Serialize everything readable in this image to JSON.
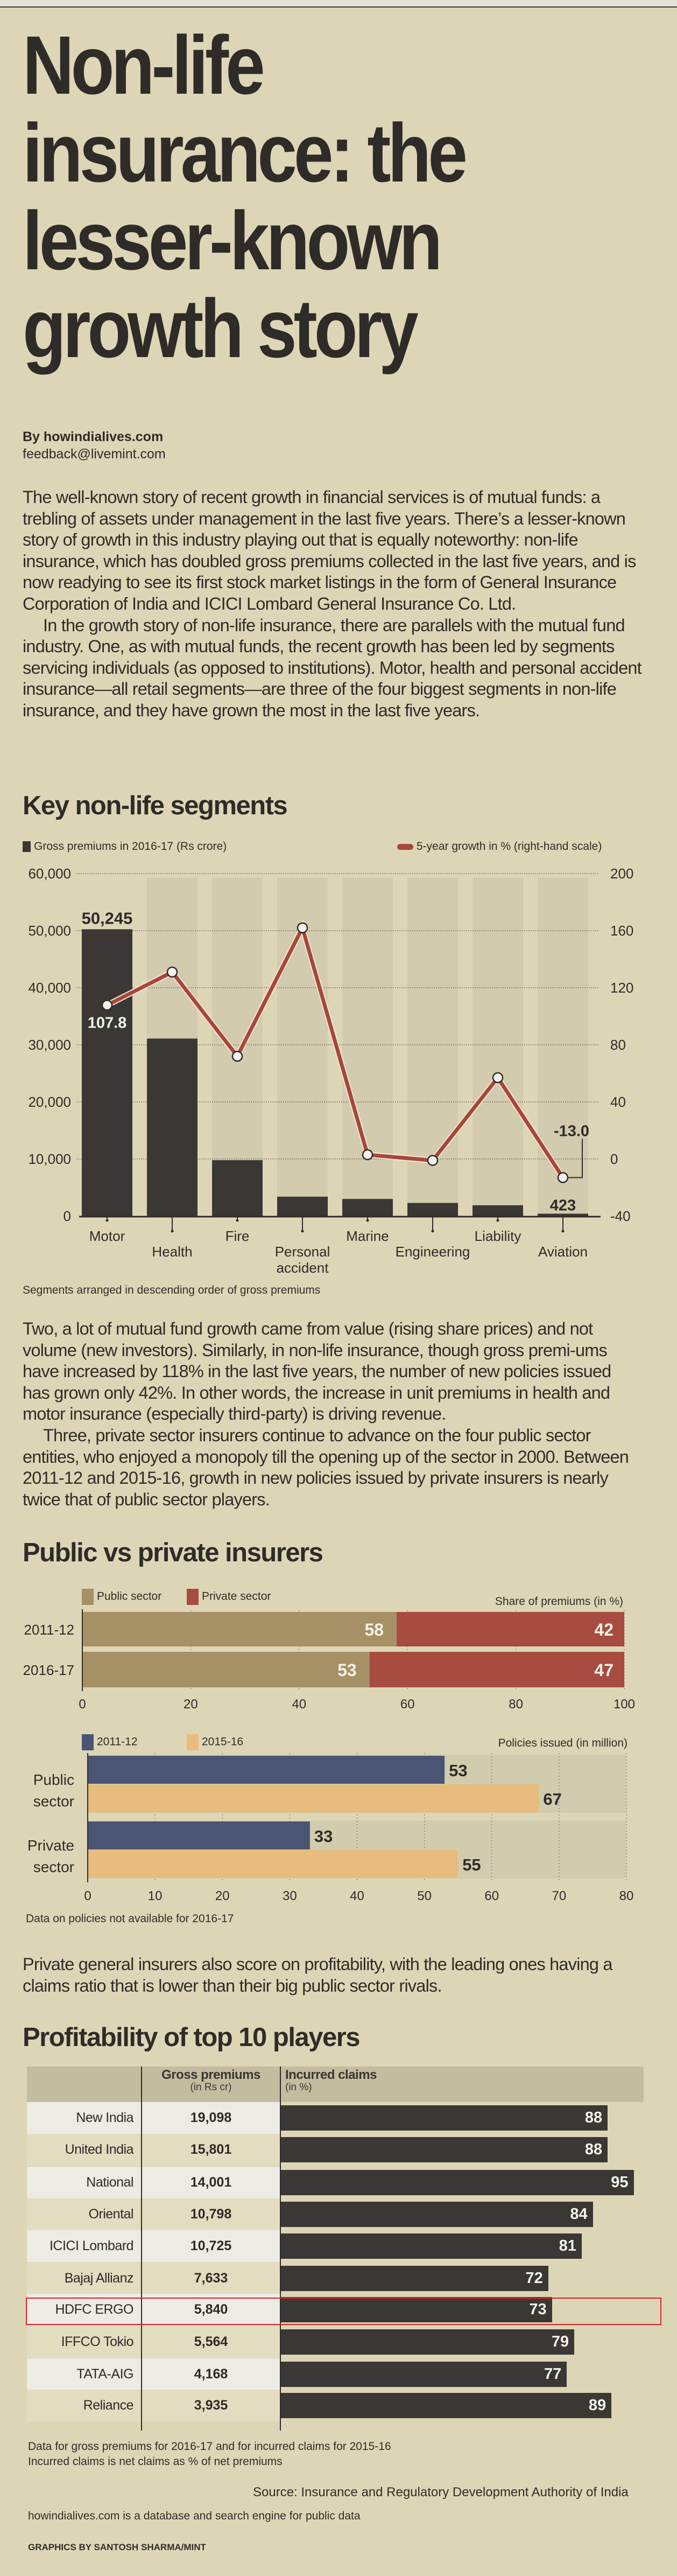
{
  "headline": [
    "Non-life",
    "insurance: the",
    "lesser-known",
    "growth story"
  ],
  "byline": {
    "by": "By howindialives.com",
    "email": "feedback@livemint.com"
  },
  "intro": [
    "The well-known story of recent growth in financial services is of mutual funds: a trebling of assets under management in the last five years. There’s a lesser-known story of growth in this industry playing out that is equally noteworthy: non-life insurance, which has doubled gross premiums collected in the last five years, and is now readying to see its first stock market listings in the form of General Insurance Corporation of India and ICICI Lombard General Insurance Co. Ltd.",
    "In the growth story of non-life insurance, there are parallels with the mutual fund industry. One, as with mutual funds, the recent growth has been led by segments servicing individuals (as opposed to institutions). Motor, health and personal accident insurance—all retail segments—are three of the four biggest segments in non-life insurance, and they have grown the most in the last five years."
  ],
  "middle": [
    "Two, a lot of mutual fund growth came from value (rising share prices) and not volume (new investors). Similarly, in non-life insurance, though gross premi-ums have increased by 118% in the last five years, the number of new policies issued has grown only 42%. In other words, the increase in unit premiums in health and motor insurance (especially third-party) is driving revenue.",
    "Three, private sector insurers continue to advance on the four public sector entities, who enjoyed a monopoly till the opening up of the sector in 2000. Between 2011-12 and 2015-16, growth in new policies issued by private insurers is nearly twice that of public sector players."
  ],
  "profit_para": "Private general insurers also score on profitability, with the leading ones having a claims ratio that is lower than their big public sector rivals.",
  "colors": {
    "bar_dark": "#3a3735",
    "line_red": "#a8463a",
    "public": "#a69065",
    "private": "#a84b40",
    "blue": "#4a5473",
    "orange": "#e7bc7c",
    "highlight": "#d8232a"
  },
  "chart_data": [
    {
      "type": "bar+line",
      "title": "Key non-life segments",
      "legend": [
        "Gross premiums in 2016-17 (Rs crore)",
        "5-year growth in % (right-hand scale)"
      ],
      "categories": [
        "Motor",
        "Health",
        "Fire",
        "Personal accident",
        "Marine",
        "Engineering",
        "Liability",
        "Aviation"
      ],
      "series": [
        {
          "name": "Gross premiums in 2016-17 (Rs crore)",
          "axis": "left",
          "type": "bar",
          "values": [
            50245,
            31100,
            9800,
            3400,
            3000,
            2300,
            1900,
            423
          ]
        },
        {
          "name": "5-year growth in % (right-hand scale)",
          "axis": "right",
          "type": "line",
          "values": [
            107.8,
            131,
            72,
            162,
            3,
            -1,
            57,
            -13.0
          ]
        }
      ],
      "data_labels": {
        "motor_bar": "50,245",
        "motor_line": "107.8",
        "aviation_line": "-13.0",
        "aviation_bar": "423"
      },
      "ylim_left": [
        0,
        60000
      ],
      "ylim_right": [
        -40,
        200
      ],
      "yticks_left": [
        "60,000",
        "50,000",
        "40,000",
        "30,000",
        "20,000",
        "10,000",
        "0"
      ],
      "yticks_right": [
        "200",
        "160",
        "120",
        "80",
        "40",
        "0",
        "-40"
      ],
      "grid": true,
      "legend_position": "top",
      "note": "Segments arranged in descending order of gross premiums"
    },
    {
      "type": "bar",
      "stacked": true,
      "title": "Public vs private insurers",
      "subtitle": "Share of premiums (in %)",
      "legend": [
        "Public sector",
        "Private sector"
      ],
      "categories": [
        "2011-12",
        "2016-17"
      ],
      "series": [
        {
          "name": "Public sector",
          "values": [
            58,
            53
          ]
        },
        {
          "name": "Private sector",
          "values": [
            42,
            47
          ]
        }
      ],
      "xlim": [
        0,
        100
      ],
      "xticks": [
        "0",
        "20",
        "40",
        "60",
        "80",
        "100"
      ]
    },
    {
      "type": "bar",
      "orientation": "horizontal",
      "subtitle": "Policies issued (in million)",
      "legend": [
        "2011-12",
        "2015-16"
      ],
      "categories": [
        "Public sector",
        "Private sector"
      ],
      "series": [
        {
          "name": "2011-12",
          "values": [
            53,
            33
          ]
        },
        {
          "name": "2015-16",
          "values": [
            67,
            55
          ]
        }
      ],
      "xlim": [
        0,
        80
      ],
      "xticks": [
        "0",
        "10",
        "20",
        "30",
        "40",
        "50",
        "60",
        "70",
        "80"
      ],
      "note": "Data on policies not available for 2016-17"
    },
    {
      "type": "table",
      "title": "Profitability of top 10 players",
      "columns": [
        {
          "label": "",
          "sub": ""
        },
        {
          "label": "Gross premiums",
          "sub": "(in Rs cr)"
        },
        {
          "label": "Incurred claims",
          "sub": "(in %)"
        }
      ],
      "rows": [
        {
          "name": "New India",
          "premium": "19,098",
          "claims": 88
        },
        {
          "name": "United India",
          "premium": "15,801",
          "claims": 88
        },
        {
          "name": "National",
          "premium": "14,001",
          "claims": 95
        },
        {
          "name": "Oriental",
          "premium": "10,798",
          "claims": 84
        },
        {
          "name": "ICICI Lombard",
          "premium": "10,725",
          "claims": 81
        },
        {
          "name": "Bajaj Allianz",
          "premium": "7,633",
          "claims": 72
        },
        {
          "name": "HDFC ERGO",
          "premium": "5,840",
          "claims": 73,
          "highlighted": true
        },
        {
          "name": "IFFCO Tokio",
          "premium": "5,564",
          "claims": 79
        },
        {
          "name": "TATA-AIG",
          "premium": "4,168",
          "claims": 77
        },
        {
          "name": "Reliance",
          "premium": "3,935",
          "claims": 89
        }
      ],
      "notes": [
        "Data for gross premiums for 2016-17 and for incurred claims for 2015-16",
        "Incurred claims is net claims as % of net premiums"
      ]
    }
  ],
  "footer": {
    "source": "Source: Insurance and Regulatory Development Authority of India",
    "about": "howindialives.com is a database and search engine for public data",
    "credit": "GRAPHICS BY SANTOSH SHARMA/MINT"
  }
}
